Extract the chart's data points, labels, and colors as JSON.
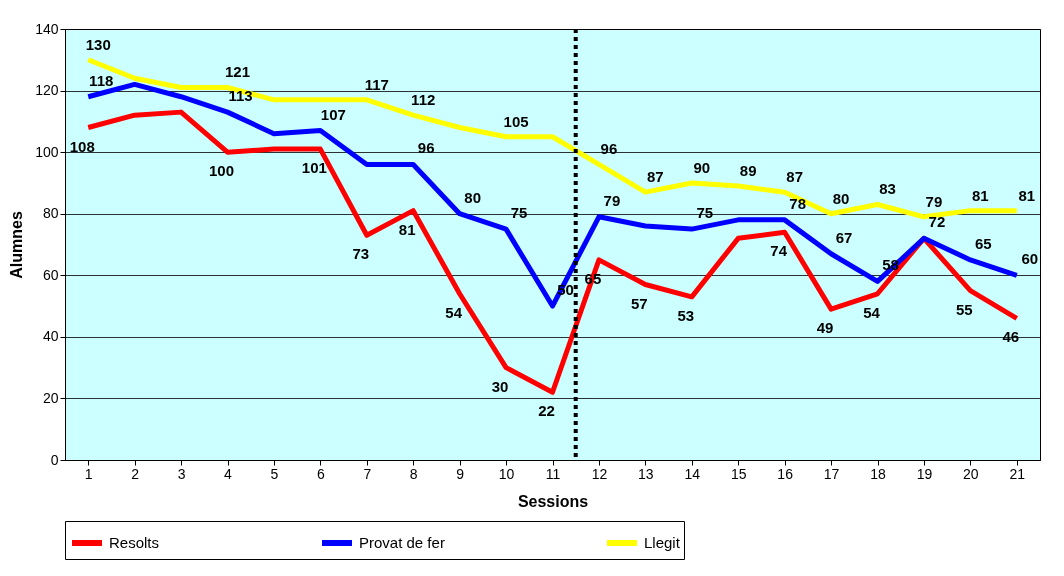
{
  "chart_data": {
    "type": "line",
    "xlabel": "Sessions",
    "ylabel": "Alumnes",
    "x": [
      1,
      2,
      3,
      4,
      5,
      6,
      7,
      8,
      9,
      10,
      11,
      12,
      13,
      14,
      15,
      16,
      17,
      18,
      19,
      20,
      21
    ],
    "xlim": [
      0.5,
      21.5
    ],
    "xticks": [
      1,
      2,
      3,
      4,
      5,
      6,
      7,
      8,
      9,
      10,
      11,
      12,
      13,
      14,
      15,
      16,
      17,
      18,
      19,
      20,
      21
    ],
    "ylim": [
      0,
      140
    ],
    "yticks": [
      0,
      20,
      40,
      60,
      80,
      100,
      120,
      140
    ],
    "grid": "y",
    "legend": "bottom",
    "marker": "none",
    "line_style": "solid",
    "ref_lines": [
      {
        "axis": "x",
        "value": 11.5,
        "color": "#000000",
        "line_style": "dotted"
      }
    ],
    "series": [
      {
        "name": "Resolts",
        "color": "#ff0000",
        "values": [
          108,
          112,
          113,
          100,
          101,
          101,
          73,
          81,
          54,
          30,
          22,
          65,
          57,
          53,
          72,
          74,
          49,
          54,
          72,
          55,
          46
        ],
        "value_labels": [
          "108",
          null,
          null,
          "100",
          null,
          "101",
          "73",
          "81",
          "54",
          "30",
          "22",
          "65",
          "57",
          "53",
          null,
          "74",
          "49",
          "54",
          null,
          "55",
          "46"
        ]
      },
      {
        "name": "Provat de fer",
        "color": "#0000ff",
        "values": [
          118,
          122,
          118,
          113,
          106,
          107,
          96,
          96,
          80,
          75,
          50,
          79,
          76,
          75,
          78,
          78,
          67,
          58,
          72,
          65,
          60
        ],
        "value_labels": [
          "118",
          null,
          null,
          "113",
          null,
          "107",
          null,
          "96",
          "80",
          "75",
          "50",
          "79",
          null,
          "75",
          null,
          "78",
          "67",
          "58",
          "72",
          "65",
          "60"
        ]
      },
      {
        "name": "Llegit",
        "color": "#ffff00",
        "values": [
          130,
          124,
          121,
          121,
          117,
          117,
          117,
          112,
          108,
          105,
          105,
          96,
          87,
          90,
          89,
          87,
          80,
          83,
          79,
          81,
          81
        ],
        "value_labels": [
          "130",
          null,
          null,
          "121",
          null,
          null,
          "117",
          "112",
          null,
          "105",
          null,
          "96",
          "87",
          "90",
          "89",
          "87",
          "80",
          "83",
          "79",
          "81",
          "81"
        ]
      }
    ]
  }
}
